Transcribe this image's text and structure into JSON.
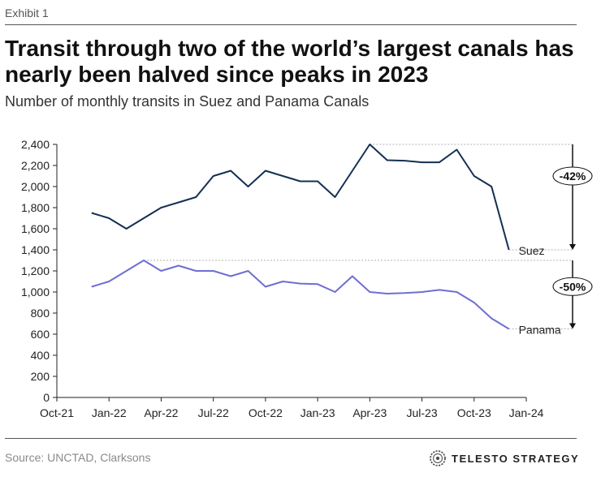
{
  "exhibit_label": "Exhibit 1",
  "title": "Transit through two of the world’s largest canals has nearly been halved since peaks in 2023",
  "subtitle": "Number of monthly transits in Suez and Panama Canals",
  "source": "Source: UNCTAD, Clarksons",
  "brand": {
    "name": "TELESTO STRATEGY",
    "icon": "ring-logo-icon"
  },
  "colors": {
    "suez": "#132f52",
    "panama": "#6e6fd0",
    "axis": "#222222",
    "guide": "#999999"
  },
  "chart_data": {
    "type": "line",
    "title": "Transit through two of the world’s largest canals has nearly been halved since peaks in 2023",
    "subtitle": "Number of monthly transits in Suez and Panama Canals",
    "ylim": [
      0,
      2400
    ],
    "yticks": [
      "0",
      "200",
      "400",
      "600",
      "800",
      "1,000",
      "1,200",
      "1,400",
      "1,600",
      "1,800",
      "2,000",
      "2,200",
      "2,400"
    ],
    "xticks": [
      "Oct-21",
      "Jan-22",
      "Apr-22",
      "Jul-22",
      "Oct-22",
      "Jan-23",
      "Apr-23",
      "Jul-23",
      "Oct-23",
      "Jan-24"
    ],
    "x": [
      "Dec-21",
      "Jan-22",
      "Feb-22",
      "Mar-22",
      "Apr-22",
      "May-22",
      "Jun-22",
      "Jul-22",
      "Aug-22",
      "Sep-22",
      "Oct-22",
      "Nov-22",
      "Dec-22",
      "Jan-23",
      "Feb-23",
      "Mar-23",
      "Apr-23",
      "May-23",
      "Jun-23",
      "Jul-23",
      "Aug-23",
      "Sep-23",
      "Oct-23",
      "Nov-23",
      "Dec-23"
    ],
    "series": [
      {
        "name": "Suez",
        "values": [
          1750,
          1700,
          1600,
          1700,
          1800,
          1850,
          1900,
          2100,
          2150,
          2000,
          2150,
          2100,
          2050,
          2050,
          1900,
          2150,
          2400,
          2250,
          2245,
          2230,
          2230,
          2350,
          2100,
          2000,
          1400
        ]
      },
      {
        "name": "Panama",
        "values": [
          1050,
          1100,
          1200,
          1300,
          1200,
          1250,
          1200,
          1200,
          1150,
          1200,
          1050,
          1100,
          1080,
          1075,
          1000,
          1150,
          1000,
          985,
          990,
          1000,
          1020,
          1000,
          900,
          750,
          650
        ]
      }
    ],
    "annotations": [
      {
        "label": "-42%",
        "series": "Suez"
      },
      {
        "label": "-50%",
        "series": "Panama"
      }
    ],
    "grid": false
  }
}
